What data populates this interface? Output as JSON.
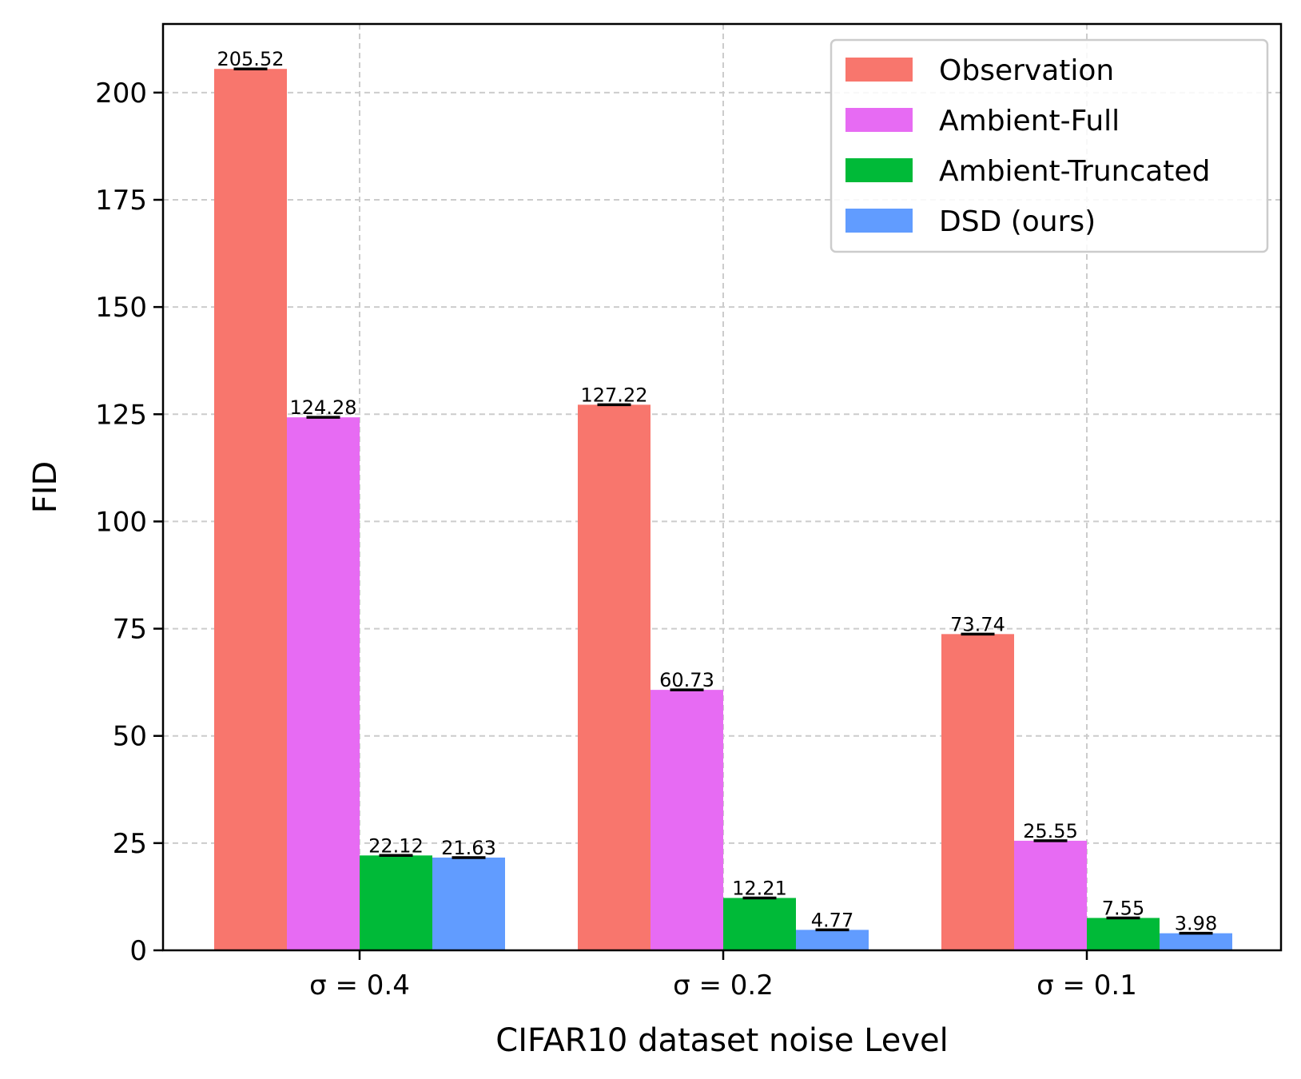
{
  "chart_data": {
    "type": "bar",
    "title": "",
    "xlabel": "CIFAR10 dataset noise Level",
    "ylabel": "FID",
    "ylim": [
      0,
      216
    ],
    "yticks": [
      0,
      25,
      50,
      75,
      100,
      125,
      150,
      175,
      200
    ],
    "categories": [
      "σ = 0.4",
      "σ = 0.2",
      "σ = 0.1"
    ],
    "grid": true,
    "legend_position": "top-right",
    "error_bars": true,
    "series": [
      {
        "name": "Observation",
        "color": "#f8766d",
        "values": [
          205.52,
          127.22,
          73.74
        ],
        "labels": [
          "205.52",
          "127.22",
          "73.74"
        ]
      },
      {
        "name": "Ambient-Full",
        "color": "#e76bf3",
        "values": [
          124.28,
          60.73,
          25.55
        ],
        "labels": [
          "124.28",
          "60.73",
          "25.55"
        ]
      },
      {
        "name": "Ambient-Truncated",
        "color": "#00ba38",
        "values": [
          22.12,
          12.21,
          7.55
        ],
        "labels": [
          "22.12",
          "12.21",
          "7.55"
        ]
      },
      {
        "name": "DSD (ours)",
        "color": "#619cff",
        "values": [
          21.63,
          4.77,
          3.98
        ],
        "labels": [
          "21.63",
          "4.77",
          "3.98"
        ]
      }
    ]
  }
}
